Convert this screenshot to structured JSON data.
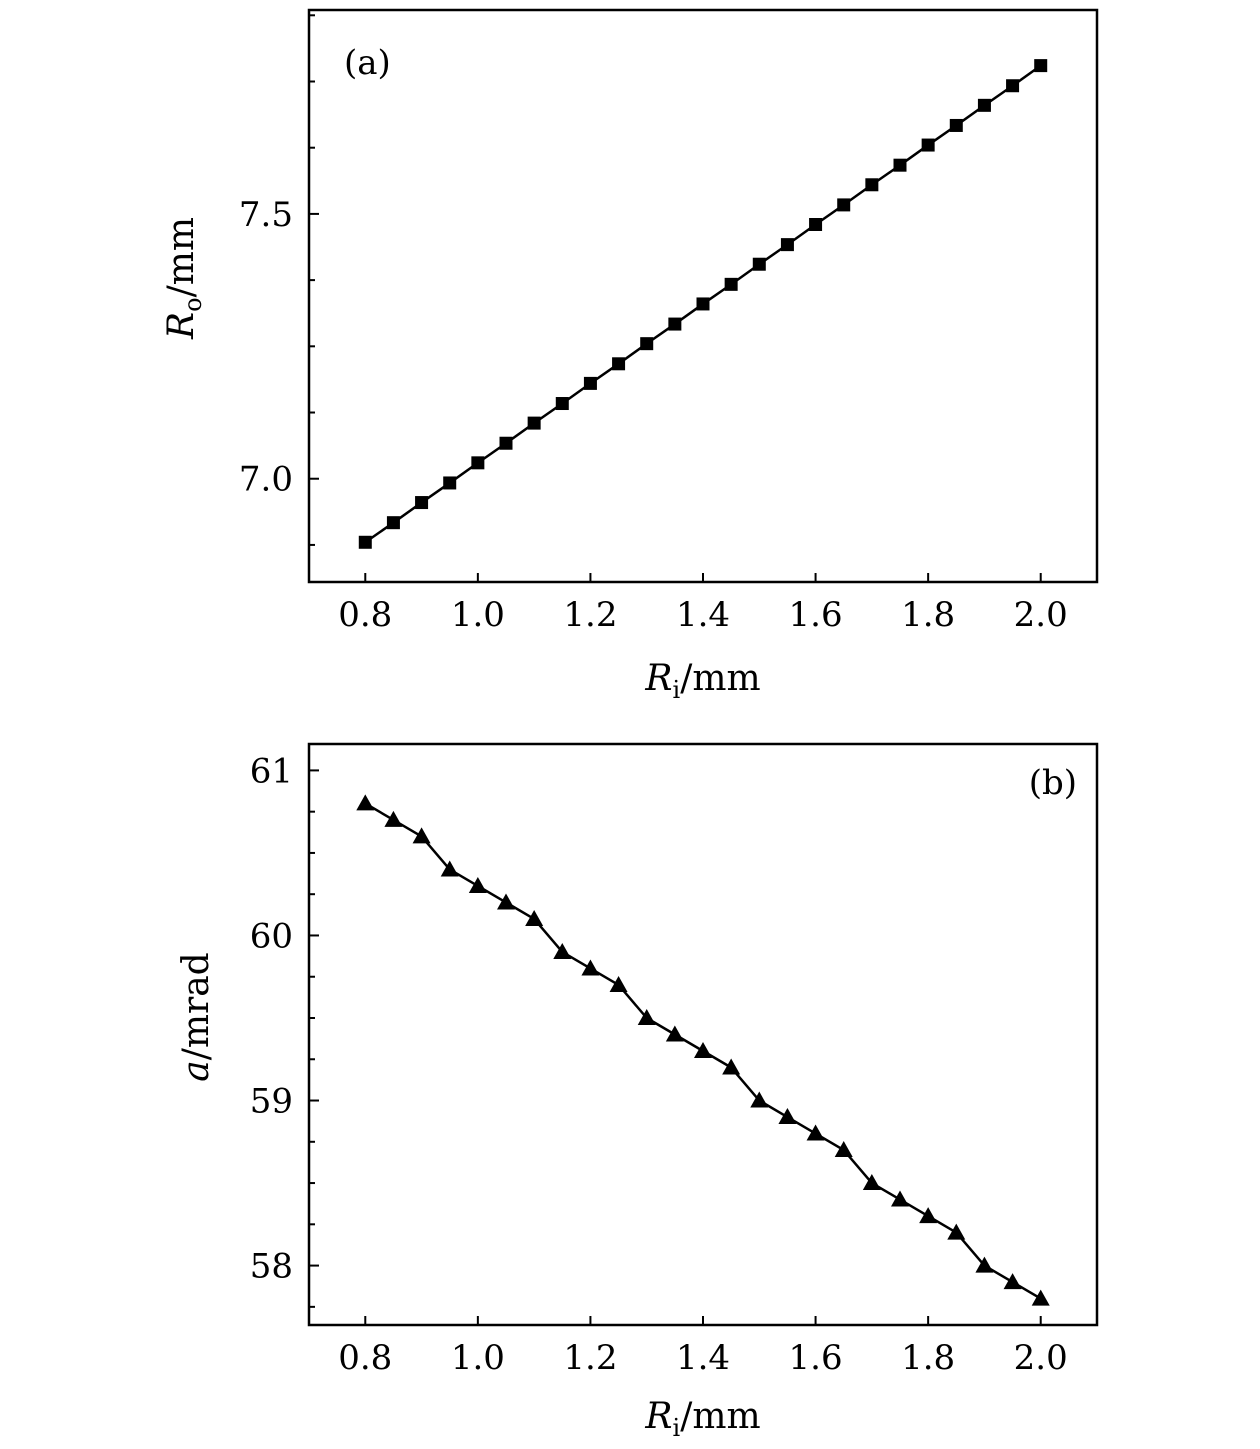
{
  "chart_data": [
    {
      "type": "line",
      "panel_label": "(a)",
      "xlabel": {
        "symbol": "R",
        "sub": "i",
        "unit": "/mm"
      },
      "ylabel": {
        "symbol": "R",
        "sub": "o",
        "unit": "/mm"
      },
      "xlim": [
        0.7,
        2.1
      ],
      "ylim": [
        6.805,
        7.885
      ],
      "xticks": [
        0.8,
        1.0,
        1.2,
        1.4,
        1.6,
        1.8,
        2.0
      ],
      "xtick_labels": [
        "0.8",
        "1.0",
        "1.2",
        "1.4",
        "1.6",
        "1.8",
        "2.0"
      ],
      "yticks": [
        7.0,
        7.5
      ],
      "ytick_labels": [
        "7.0",
        "7.5"
      ],
      "yminor": [
        6.875,
        7.125,
        7.25,
        7.375,
        7.625,
        7.75,
        7.875
      ],
      "marker": "square",
      "series": [
        {
          "x": [
            0.8,
            0.85,
            0.9,
            0.95,
            1.0,
            1.05,
            1.1,
            1.15,
            1.2,
            1.25,
            1.3,
            1.35,
            1.4,
            1.45,
            1.5,
            1.55,
            1.6,
            1.65,
            1.7,
            1.75,
            1.8,
            1.85,
            1.9,
            1.95,
            2.0
          ],
          "values": [
            6.88,
            6.917,
            6.955,
            6.992,
            7.03,
            7.067,
            7.105,
            7.142,
            7.18,
            7.217,
            7.255,
            7.292,
            7.33,
            7.367,
            7.405,
            7.442,
            7.48,
            7.517,
            7.555,
            7.592,
            7.63,
            7.667,
            7.705,
            7.742,
            7.78
          ]
        }
      ],
      "grid": false
    },
    {
      "type": "line",
      "panel_label": "(b)",
      "xlabel": {
        "symbol": "R",
        "sub": "i",
        "unit": "/mm"
      },
      "ylabel": {
        "symbol": "a",
        "sub": "",
        "unit": "/mrad"
      },
      "xlim": [
        0.7,
        2.1
      ],
      "ylim": [
        57.64,
        61.16
      ],
      "xticks": [
        0.8,
        1.0,
        1.2,
        1.4,
        1.6,
        1.8,
        2.0
      ],
      "xtick_labels": [
        "0.8",
        "1.0",
        "1.2",
        "1.4",
        "1.6",
        "1.8",
        "2.0"
      ],
      "yticks": [
        58,
        59,
        60,
        61
      ],
      "ytick_labels": [
        "58",
        "59",
        "60",
        "61"
      ],
      "yminor": [
        57.75,
        58.25,
        58.5,
        58.75,
        59.25,
        59.5,
        59.75,
        60.25,
        60.5,
        60.75
      ],
      "marker": "triangle",
      "series": [
        {
          "x": [
            0.8,
            0.85,
            0.9,
            0.95,
            1.0,
            1.05,
            1.1,
            1.15,
            1.2,
            1.25,
            1.3,
            1.35,
            1.4,
            1.45,
            1.5,
            1.55,
            1.6,
            1.65,
            1.7,
            1.75,
            1.8,
            1.85,
            1.9,
            1.95,
            2.0
          ],
          "values": [
            60.8,
            60.7,
            60.6,
            60.4,
            60.3,
            60.2,
            60.1,
            59.9,
            59.8,
            59.7,
            59.5,
            59.4,
            59.3,
            59.2,
            59.0,
            58.9,
            58.8,
            58.7,
            58.5,
            58.4,
            58.3,
            58.2,
            58.0,
            57.9,
            57.8
          ]
        }
      ],
      "grid": false
    }
  ]
}
